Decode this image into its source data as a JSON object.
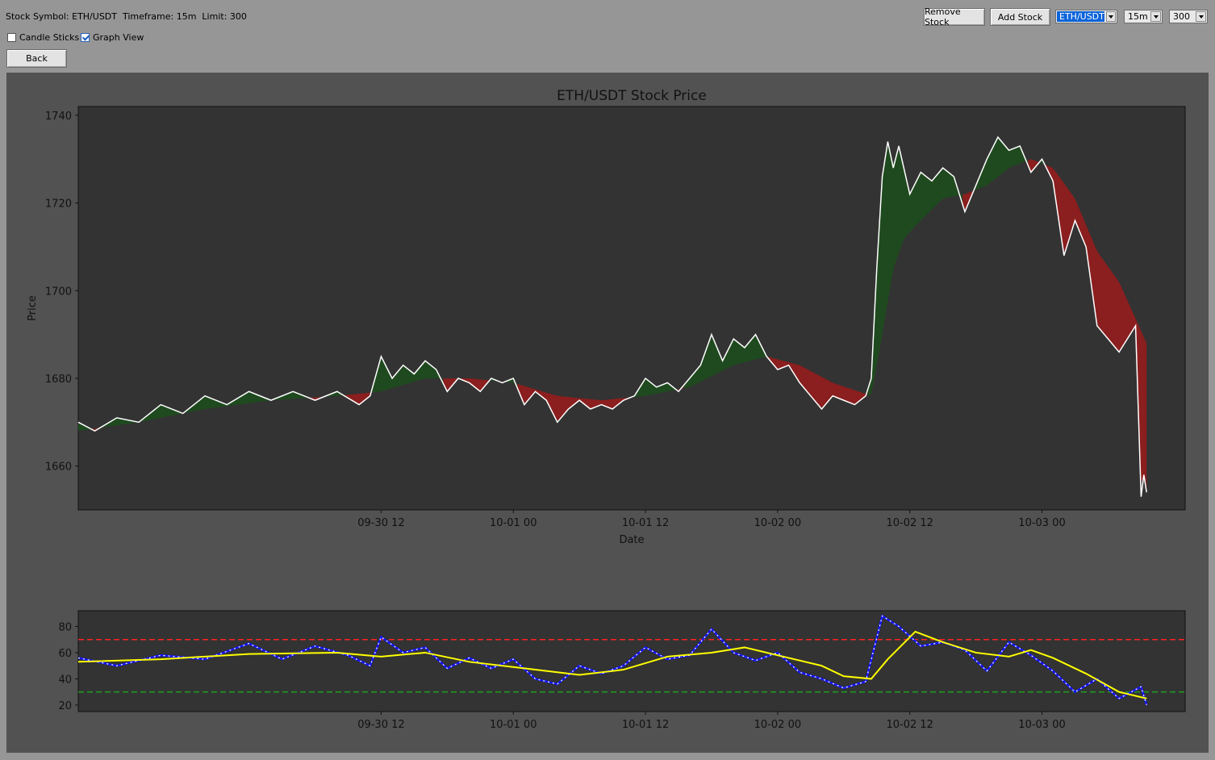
{
  "header": {
    "info_text": "Stock Symbol: ETH/USDT  Timeframe: 15m  Limit: 300",
    "candle_sticks_label": "Candle Sticks",
    "candle_sticks_checked": false,
    "graph_view_label": "Graph View",
    "graph_view_checked": true,
    "back_label": "Back",
    "remove_stock_label": "Remove Stock",
    "add_stock_label": "Add Stock",
    "symbol_value": "ETH/USDT",
    "timeframe_value": "15m",
    "limit_value": "300"
  },
  "colors": {
    "window_bg": "#969696",
    "figure_bg": "#525252",
    "axes_bg": "#333333",
    "price_line": "#ffffff",
    "bull_fill": "#1f4a1f",
    "bear_fill": "#8b1e1e",
    "rsi_line": "#1414ff",
    "rsi_ma": "#ffff00",
    "overbought": "#ff2020",
    "oversold": "#20a020"
  },
  "chart_data": [
    {
      "type": "line",
      "title": "ETH/USDT Stock Price",
      "xlabel": "Date",
      "ylabel": "Price",
      "ylim": [
        1650,
        1742
      ],
      "xlim": [
        "2023-09-29 08:30",
        "2023-10-03 13:00"
      ],
      "x_ticks": [
        "09-30 12",
        "10-01 00",
        "10-01 12",
        "10-02 00",
        "10-02 12",
        "10-03 00"
      ],
      "y_ticks": [
        1660,
        1680,
        1700,
        1720,
        1740
      ],
      "grid": false,
      "price_points": [
        [
          "2023-09-29 08:30",
          1670
        ],
        [
          "2023-09-29 10:00",
          1668
        ],
        [
          "2023-09-29 12:00",
          1671
        ],
        [
          "2023-09-29 14:00",
          1670
        ],
        [
          "2023-09-29 16:00",
          1674
        ],
        [
          "2023-09-29 18:00",
          1672
        ],
        [
          "2023-09-29 20:00",
          1676
        ],
        [
          "2023-09-29 22:00",
          1674
        ],
        [
          "2023-09-30 00:00",
          1677
        ],
        [
          "2023-09-30 02:00",
          1675
        ],
        [
          "2023-09-30 04:00",
          1677
        ],
        [
          "2023-09-30 06:00",
          1675
        ],
        [
          "2023-09-30 08:00",
          1677
        ],
        [
          "2023-09-30 10:00",
          1674
        ],
        [
          "2023-09-30 11:00",
          1676
        ],
        [
          "2023-09-30 12:00",
          1685
        ],
        [
          "2023-09-30 13:00",
          1680
        ],
        [
          "2023-09-30 14:00",
          1683
        ],
        [
          "2023-09-30 15:00",
          1681
        ],
        [
          "2023-09-30 16:00",
          1684
        ],
        [
          "2023-09-30 17:00",
          1682
        ],
        [
          "2023-09-30 18:00",
          1677
        ],
        [
          "2023-09-30 19:00",
          1680
        ],
        [
          "2023-09-30 20:00",
          1679
        ],
        [
          "2023-09-30 21:00",
          1677
        ],
        [
          "2023-09-30 22:00",
          1680
        ],
        [
          "2023-09-30 23:00",
          1679
        ],
        [
          "2023-10-01 00:00",
          1680
        ],
        [
          "2023-10-01 01:00",
          1674
        ],
        [
          "2023-10-01 02:00",
          1677
        ],
        [
          "2023-10-01 03:00",
          1675
        ],
        [
          "2023-10-01 04:00",
          1670
        ],
        [
          "2023-10-01 05:00",
          1673
        ],
        [
          "2023-10-01 06:00",
          1675
        ],
        [
          "2023-10-01 07:00",
          1673
        ],
        [
          "2023-10-01 08:00",
          1674
        ],
        [
          "2023-10-01 09:00",
          1673
        ],
        [
          "2023-10-01 10:00",
          1675
        ],
        [
          "2023-10-01 11:00",
          1676
        ],
        [
          "2023-10-01 12:00",
          1680
        ],
        [
          "2023-10-01 13:00",
          1678
        ],
        [
          "2023-10-01 14:00",
          1679
        ],
        [
          "2023-10-01 15:00",
          1677
        ],
        [
          "2023-10-01 16:00",
          1680
        ],
        [
          "2023-10-01 17:00",
          1683
        ],
        [
          "2023-10-01 18:00",
          1690
        ],
        [
          "2023-10-01 19:00",
          1684
        ],
        [
          "2023-10-01 20:00",
          1689
        ],
        [
          "2023-10-01 21:00",
          1687
        ],
        [
          "2023-10-01 22:00",
          1690
        ],
        [
          "2023-10-01 23:00",
          1685
        ],
        [
          "2023-10-02 00:00",
          1682
        ],
        [
          "2023-10-02 01:00",
          1683
        ],
        [
          "2023-10-02 02:00",
          1679
        ],
        [
          "2023-10-02 03:00",
          1676
        ],
        [
          "2023-10-02 04:00",
          1673
        ],
        [
          "2023-10-02 05:00",
          1676
        ],
        [
          "2023-10-02 06:00",
          1675
        ],
        [
          "2023-10-02 07:00",
          1674
        ],
        [
          "2023-10-02 08:00",
          1676
        ],
        [
          "2023-10-02 08:30",
          1680
        ],
        [
          "2023-10-02 09:00",
          1705
        ],
        [
          "2023-10-02 09:30",
          1726
        ],
        [
          "2023-10-02 10:00",
          1734
        ],
        [
          "2023-10-02 10:30",
          1728
        ],
        [
          "2023-10-02 11:00",
          1733
        ],
        [
          "2023-10-02 12:00",
          1722
        ],
        [
          "2023-10-02 13:00",
          1727
        ],
        [
          "2023-10-02 14:00",
          1725
        ],
        [
          "2023-10-02 15:00",
          1728
        ],
        [
          "2023-10-02 16:00",
          1726
        ],
        [
          "2023-10-02 17:00",
          1718
        ],
        [
          "2023-10-02 18:00",
          1724
        ],
        [
          "2023-10-02 19:00",
          1730
        ],
        [
          "2023-10-02 20:00",
          1735
        ],
        [
          "2023-10-02 21:00",
          1732
        ],
        [
          "2023-10-02 22:00",
          1733
        ],
        [
          "2023-10-02 23:00",
          1727
        ],
        [
          "2023-10-03 00:00",
          1730
        ],
        [
          "2023-10-03 01:00",
          1725
        ],
        [
          "2023-10-03 02:00",
          1708
        ],
        [
          "2023-10-03 03:00",
          1716
        ],
        [
          "2023-10-03 04:00",
          1710
        ],
        [
          "2023-10-03 05:00",
          1692
        ],
        [
          "2023-10-03 06:00",
          1689
        ],
        [
          "2023-10-03 07:00",
          1686
        ],
        [
          "2023-10-03 08:00",
          1690
        ],
        [
          "2023-10-03 08:30",
          1692
        ],
        [
          "2023-10-03 09:00",
          1653
        ],
        [
          "2023-10-03 09:15",
          1658
        ],
        [
          "2023-10-03 09:30",
          1654
        ]
      ],
      "moving_average_points": [
        [
          "2023-09-29 08:30",
          1668
        ],
        [
          "2023-09-29 14:00",
          1670
        ],
        [
          "2023-09-29 20:00",
          1673
        ],
        [
          "2023-09-30 02:00",
          1675
        ],
        [
          "2023-09-30 08:00",
          1676
        ],
        [
          "2023-09-30 12:00",
          1677
        ],
        [
          "2023-09-30 16:00",
          1680
        ],
        [
          "2023-09-30 20:00",
          1680
        ],
        [
          "2023-10-01 00:00",
          1679
        ],
        [
          "2023-10-01 04:00",
          1676
        ],
        [
          "2023-10-01 08:00",
          1675
        ],
        [
          "2023-10-01 12:00",
          1676
        ],
        [
          "2023-10-01 16:00",
          1678
        ],
        [
          "2023-10-01 20:00",
          1683
        ],
        [
          "2023-10-01 23:00",
          1685
        ],
        [
          "2023-10-02 02:00",
          1683
        ],
        [
          "2023-10-02 05:00",
          1679
        ],
        [
          "2023-10-02 08:30",
          1676
        ],
        [
          "2023-10-02 09:30",
          1690
        ],
        [
          "2023-10-02 10:30",
          1705
        ],
        [
          "2023-10-02 11:30",
          1712
        ],
        [
          "2023-10-02 13:00",
          1716
        ],
        [
          "2023-10-02 15:00",
          1721
        ],
        [
          "2023-10-02 17:00",
          1722
        ],
        [
          "2023-10-02 19:00",
          1724
        ],
        [
          "2023-10-02 21:00",
          1728
        ],
        [
          "2023-10-02 23:00",
          1730
        ],
        [
          "2023-10-03 01:00",
          1728
        ],
        [
          "2023-10-03 03:00",
          1721
        ],
        [
          "2023-10-03 05:00",
          1709
        ],
        [
          "2023-10-03 07:00",
          1702
        ],
        [
          "2023-10-03 09:30",
          1688
        ]
      ]
    },
    {
      "type": "line",
      "title": "",
      "xlabel": "",
      "ylabel": "",
      "ylim": [
        15,
        92
      ],
      "xlim": [
        "2023-09-29 08:30",
        "2023-10-03 13:00"
      ],
      "y_ticks": [
        20,
        40,
        60,
        80
      ],
      "x_ticks": [
        "09-30 12",
        "10-01 00",
        "10-01 12",
        "10-02 00",
        "10-02 12",
        "10-03 00"
      ],
      "overbought_level": 70,
      "oversold_level": 30,
      "rsi_points": [
        [
          "2023-09-29 08:30",
          56
        ],
        [
          "2023-09-29 12:00",
          50
        ],
        [
          "2023-09-29 16:00",
          58
        ],
        [
          "2023-09-29 20:00",
          55
        ],
        [
          "2023-09-30 00:00",
          67
        ],
        [
          "2023-09-30 03:00",
          55
        ],
        [
          "2023-09-30 06:00",
          65
        ],
        [
          "2023-09-30 09:00",
          58
        ],
        [
          "2023-09-30 11:00",
          50
        ],
        [
          "2023-09-30 12:00",
          72
        ],
        [
          "2023-09-30 14:00",
          60
        ],
        [
          "2023-09-30 16:00",
          64
        ],
        [
          "2023-09-30 18:00",
          48
        ],
        [
          "2023-09-30 20:00",
          56
        ],
        [
          "2023-09-30 22:00",
          48
        ],
        [
          "2023-10-01 00:00",
          55
        ],
        [
          "2023-10-01 02:00",
          40
        ],
        [
          "2023-10-01 04:00",
          36
        ],
        [
          "2023-10-01 06:00",
          50
        ],
        [
          "2023-10-01 08:00",
          44
        ],
        [
          "2023-10-01 10:00",
          50
        ],
        [
          "2023-10-01 12:00",
          64
        ],
        [
          "2023-10-01 14:00",
          55
        ],
        [
          "2023-10-01 16:00",
          58
        ],
        [
          "2023-10-01 18:00",
          78
        ],
        [
          "2023-10-01 20:00",
          60
        ],
        [
          "2023-10-01 22:00",
          54
        ],
        [
          "2023-10-02 00:00",
          60
        ],
        [
          "2023-10-02 02:00",
          45
        ],
        [
          "2023-10-02 04:00",
          40
        ],
        [
          "2023-10-02 06:00",
          33
        ],
        [
          "2023-10-02 08:00",
          38
        ],
        [
          "2023-10-02 09:30",
          88
        ],
        [
          "2023-10-02 11:00",
          80
        ],
        [
          "2023-10-02 13:00",
          65
        ],
        [
          "2023-10-02 15:00",
          68
        ],
        [
          "2023-10-02 17:00",
          62
        ],
        [
          "2023-10-02 19:00",
          46
        ],
        [
          "2023-10-02 21:00",
          68
        ],
        [
          "2023-10-02 23:00",
          58
        ],
        [
          "2023-10-03 01:00",
          46
        ],
        [
          "2023-10-03 03:00",
          30
        ],
        [
          "2023-10-03 05:00",
          40
        ],
        [
          "2023-10-03 07:00",
          25
        ],
        [
          "2023-10-03 09:00",
          34
        ],
        [
          "2023-10-03 09:30",
          20
        ]
      ],
      "rsi_ma_points": [
        [
          "2023-09-29 08:30",
          53
        ],
        [
          "2023-09-29 16:00",
          55
        ],
        [
          "2023-09-30 00:00",
          59
        ],
        [
          "2023-09-30 08:00",
          60
        ],
        [
          "2023-09-30 12:00",
          57
        ],
        [
          "2023-09-30 16:00",
          60
        ],
        [
          "2023-09-30 20:00",
          53
        ],
        [
          "2023-10-01 00:00",
          49
        ],
        [
          "2023-10-01 06:00",
          43
        ],
        [
          "2023-10-01 10:00",
          47
        ],
        [
          "2023-10-01 14:00",
          57
        ],
        [
          "2023-10-01 18:00",
          60
        ],
        [
          "2023-10-01 21:00",
          64
        ],
        [
          "2023-10-02 00:00",
          58
        ],
        [
          "2023-10-02 04:00",
          50
        ],
        [
          "2023-10-02 06:00",
          42
        ],
        [
          "2023-10-02 08:30",
          40
        ],
        [
          "2023-10-02 10:00",
          55
        ],
        [
          "2023-10-02 12:30",
          76
        ],
        [
          "2023-10-02 15:00",
          68
        ],
        [
          "2023-10-02 18:00",
          60
        ],
        [
          "2023-10-02 21:00",
          57
        ],
        [
          "2023-10-02 23:00",
          62
        ],
        [
          "2023-10-03 01:00",
          56
        ],
        [
          "2023-10-03 04:00",
          44
        ],
        [
          "2023-10-03 07:00",
          30
        ],
        [
          "2023-10-03 09:30",
          25
        ]
      ]
    }
  ]
}
